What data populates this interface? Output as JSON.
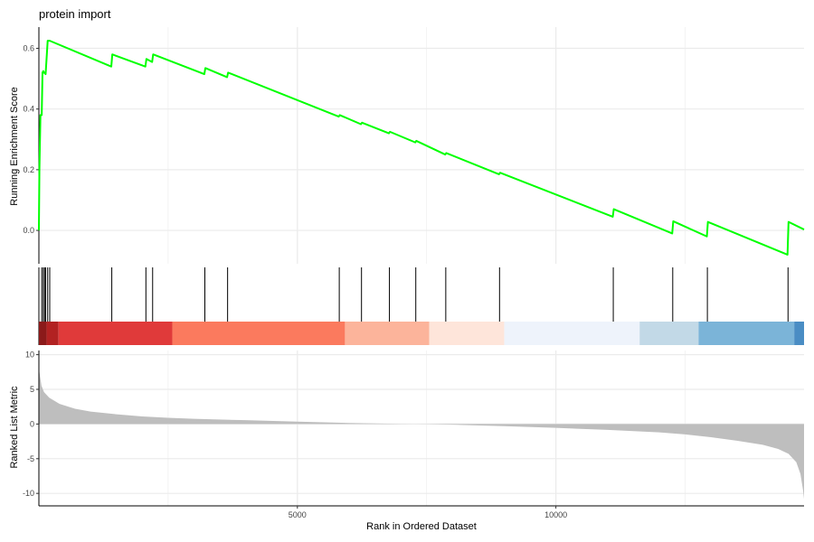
{
  "chart_data": [
    {
      "type": "line",
      "panel": "running-enrichment-score",
      "title": "protein import",
      "ylabel": "Running Enrichment Score",
      "xlim": [
        0,
        14800
      ],
      "ylim": [
        -0.11,
        0.67
      ],
      "y_ticks": [
        0.0,
        0.2,
        0.4,
        0.6
      ],
      "y_tick_labels": [
        "0.0",
        "0.2",
        "0.4",
        "0.6"
      ],
      "grid": true,
      "line_color": "#00FF00",
      "x": [
        0,
        10,
        30,
        55,
        70,
        85,
        100,
        130,
        170,
        210,
        1400,
        1420,
        2060,
        2080,
        2190,
        2210,
        3200,
        3220,
        3640,
        3660,
        5800,
        5820,
        6230,
        6250,
        6770,
        6790,
        7280,
        7300,
        7860,
        7880,
        8900,
        8920,
        11100,
        11120,
        12250,
        12270,
        12920,
        12940,
        14480,
        14500,
        14800
      ],
      "y": [
        0.0,
        0.2,
        0.38,
        0.38,
        0.52,
        0.525,
        0.52,
        0.515,
        0.625,
        0.625,
        0.54,
        0.58,
        0.54,
        0.565,
        0.555,
        0.58,
        0.515,
        0.535,
        0.505,
        0.52,
        0.375,
        0.38,
        0.35,
        0.355,
        0.32,
        0.325,
        0.29,
        0.295,
        0.25,
        0.255,
        0.185,
        0.19,
        0.045,
        0.07,
        -0.01,
        0.03,
        -0.02,
        0.028,
        -0.08,
        0.028,
        0.003
      ]
    },
    {
      "type": "scatter",
      "panel": "gene-hits",
      "hits": [
        0,
        55,
        85,
        110,
        130,
        170,
        210,
        1410,
        2070,
        2200,
        3210,
        3650,
        5810,
        6240,
        6780,
        7290,
        7870,
        8910,
        11110,
        12260,
        12930,
        14490
      ]
    },
    {
      "type": "heatmap",
      "panel": "rank-color-bar",
      "segments": [
        {
          "start": 0,
          "end": 150,
          "color": "#8B1A1A"
        },
        {
          "start": 150,
          "end": 380,
          "color": "#B22222"
        },
        {
          "start": 380,
          "end": 2580,
          "color": "#E03A3A"
        },
        {
          "start": 2580,
          "end": 5920,
          "color": "#FB7A5E"
        },
        {
          "start": 5920,
          "end": 7550,
          "color": "#FCB49B"
        },
        {
          "start": 7550,
          "end": 9000,
          "color": "#FEE5DA"
        },
        {
          "start": 9000,
          "end": 11620,
          "color": "#EEF3FB"
        },
        {
          "start": 11620,
          "end": 12760,
          "color": "#C2D9E7"
        },
        {
          "start": 12760,
          "end": 14610,
          "color": "#7BB4D8"
        },
        {
          "start": 14610,
          "end": 14800,
          "color": "#4A8DC4"
        }
      ]
    },
    {
      "type": "area",
      "panel": "ranked-list-metric",
      "xlabel": "Rank in Ordered Dataset",
      "ylabel": "Ranked List Metric",
      "xlim": [
        0,
        14800
      ],
      "ylim": [
        -11.8,
        10.6
      ],
      "x_ticks": [
        5000,
        10000
      ],
      "x_tick_labels": [
        "5000",
        "10000"
      ],
      "y_ticks": [
        10,
        5,
        0,
        -5,
        -10
      ],
      "y_tick_labels": [
        "10",
        "5",
        "0",
        "-5",
        "-10"
      ],
      "fill_color": "#BEBEBE",
      "x": [
        0,
        20,
        50,
        100,
        200,
        400,
        700,
        1000,
        1500,
        2000,
        2500,
        3000,
        4000,
        5000,
        6000,
        7000,
        7500,
        8000,
        9000,
        10000,
        11000,
        12000,
        12500,
        13000,
        13500,
        14000,
        14300,
        14500,
        14650,
        14730,
        14780,
        14800
      ],
      "y": [
        8.0,
        7.0,
        5.5,
        4.6,
        3.8,
        2.9,
        2.2,
        1.8,
        1.4,
        1.1,
        0.9,
        0.75,
        0.55,
        0.35,
        0.15,
        0.02,
        -0.02,
        -0.1,
        -0.3,
        -0.55,
        -0.85,
        -1.2,
        -1.5,
        -1.9,
        -2.4,
        -3.0,
        -3.6,
        -4.3,
        -5.5,
        -7.2,
        -9.5,
        -10.8
      ]
    }
  ]
}
